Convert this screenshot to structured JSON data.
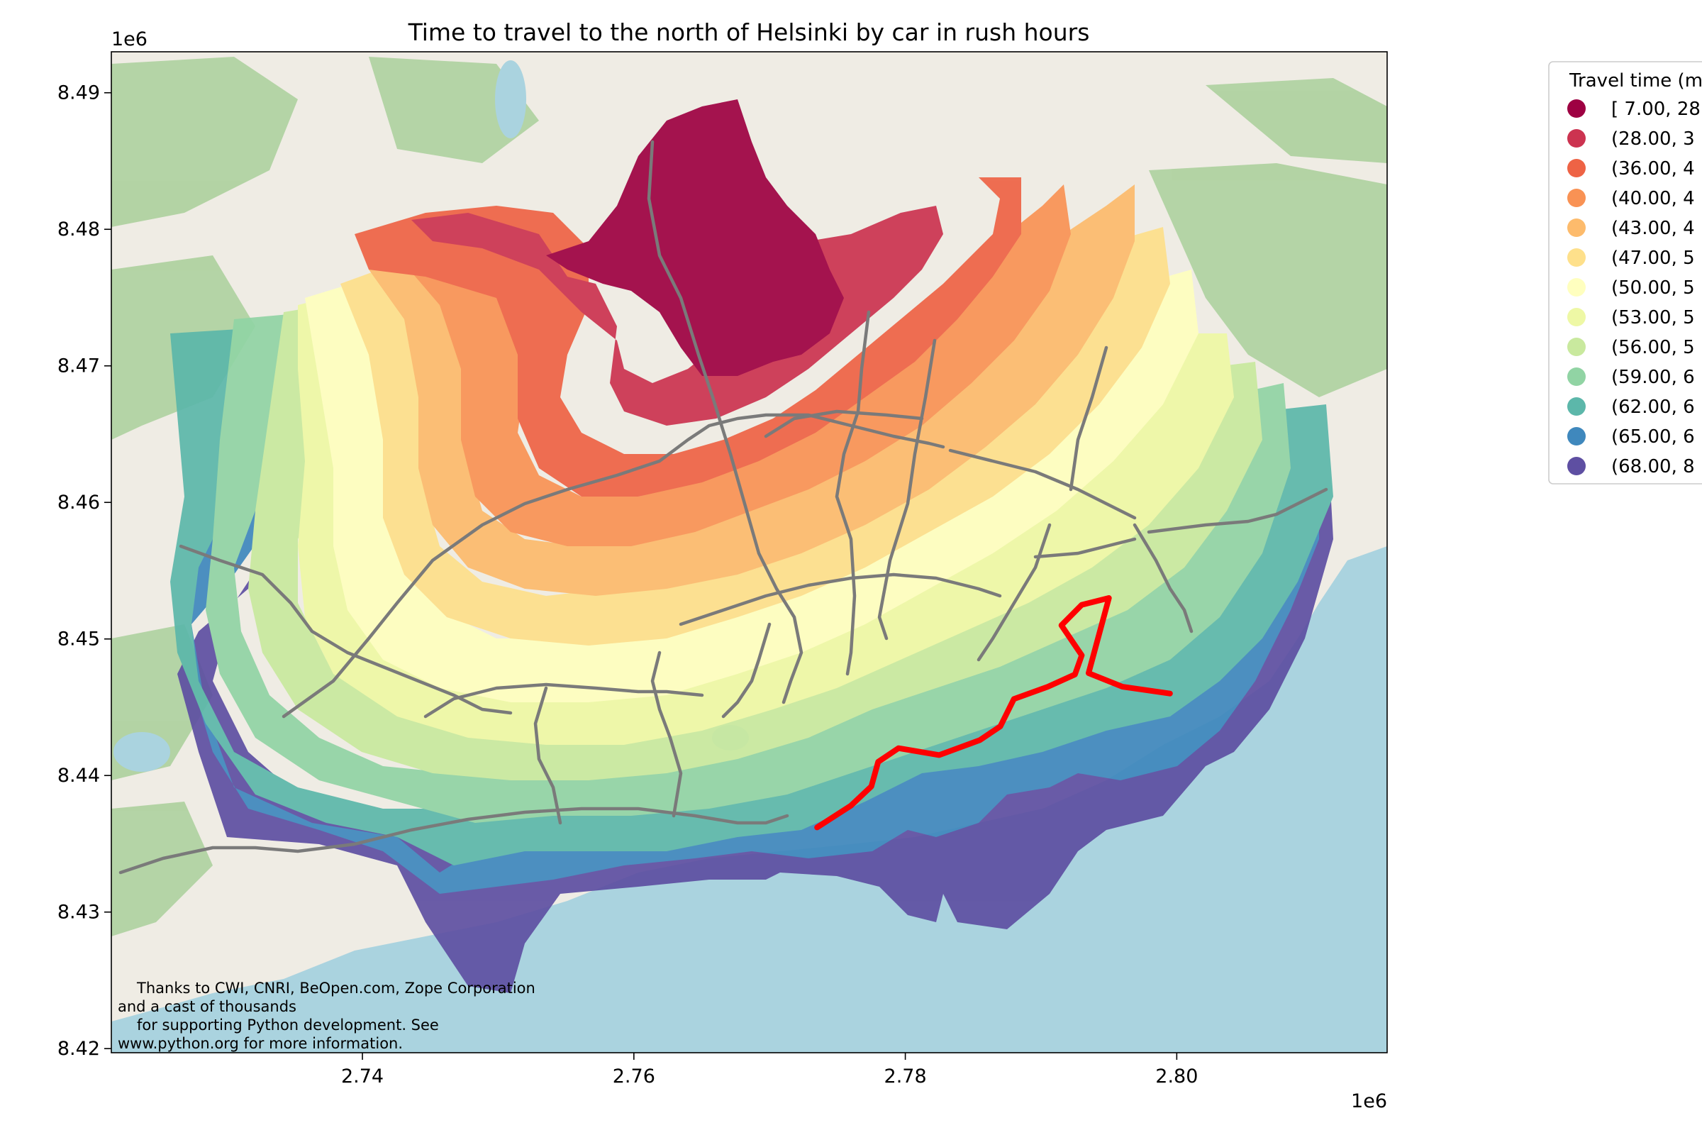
{
  "chart_data": {
    "type": "heatmap",
    "title": "Time to travel to the north of Helsinki by car in rush hours",
    "xlabel": "",
    "ylabel": "",
    "x_offset_label": "1e6",
    "y_offset_label": "1e6",
    "xlim": [
      2.7215,
      2.8155
    ],
    "ylim": [
      8.4197,
      8.493
    ],
    "x_ticks": [
      {
        "value": 2.74,
        "label": "2.74"
      },
      {
        "value": 2.76,
        "label": "2.76"
      },
      {
        "value": 2.78,
        "label": "2.78"
      },
      {
        "value": 2.8,
        "label": "2.80"
      }
    ],
    "y_ticks": [
      {
        "value": 8.42,
        "label": "8.42"
      },
      {
        "value": 8.43,
        "label": "8.43"
      },
      {
        "value": 8.44,
        "label": "8.44"
      },
      {
        "value": 8.45,
        "label": "8.45"
      },
      {
        "value": 8.46,
        "label": "8.46"
      },
      {
        "value": 8.47,
        "label": "8.47"
      },
      {
        "value": 8.48,
        "label": "8.48"
      },
      {
        "value": 8.49,
        "label": "8.49"
      }
    ],
    "legend": {
      "title": "Travel time (m",
      "placement": "outside-right",
      "entries": [
        {
          "label": "[ 7.00, 28",
          "color": "#9e0142"
        },
        {
          "label": "(28.00, 3",
          "color": "#cc3350"
        },
        {
          "label": "(36.00, 4",
          "color": "#ee6345"
        },
        {
          "label": "(40.00, 4",
          "color": "#f99254"
        },
        {
          "label": "(43.00, 4",
          "color": "#fdbb6c"
        },
        {
          "label": "(47.00, 5",
          "color": "#fee08b"
        },
        {
          "label": "(50.00, 5",
          "color": "#ffffbf"
        },
        {
          "label": "(53.00, 5",
          "color": "#eef8a5"
        },
        {
          "label": "(56.00, 5",
          "color": "#c9e99e"
        },
        {
          "label": "(59.00, 6",
          "color": "#91d4a4"
        },
        {
          "label": "(62.00, 6",
          "color": "#5cb7aa"
        },
        {
          "label": "(65.00, 6",
          "color": "#3f88bd"
        },
        {
          "label": "(68.00, 8",
          "color": "#5e4fa2"
        }
      ]
    },
    "highlighted_route": {
      "color": "#ff0000",
      "points": [
        [
          2.7735,
          8.4362
        ],
        [
          2.776,
          8.4378
        ],
        [
          2.7775,
          8.4392
        ],
        [
          2.778,
          8.441
        ],
        [
          2.7795,
          8.442
        ],
        [
          2.7825,
          8.4415
        ],
        [
          2.7855,
          8.4426
        ],
        [
          2.787,
          8.4436
        ],
        [
          2.788,
          8.4456
        ],
        [
          2.7905,
          8.4465
        ],
        [
          2.7925,
          8.4474
        ],
        [
          2.793,
          8.4488
        ],
        [
          2.7915,
          8.451
        ],
        [
          2.793,
          8.4525
        ],
        [
          2.795,
          8.453
        ],
        [
          2.7935,
          8.4475
        ],
        [
          2.796,
          8.4465
        ],
        [
          2.7995,
          8.446
        ]
      ]
    },
    "attribution": [
      "Thanks to CWI, CNRI, BeOpen.com, Zope Corporation",
      "and a cast of thousands",
      "for supporting Python development.  See",
      "www.python.org for more information."
    ],
    "colors": {
      "sea": "#aad3df",
      "land": "#efece4",
      "forest": "#add19e",
      "road": "#7a7a7a",
      "route": "#ff0000"
    }
  }
}
